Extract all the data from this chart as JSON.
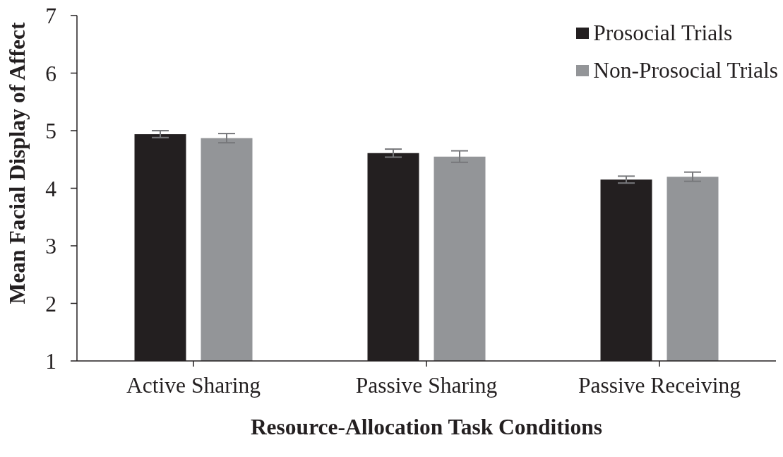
{
  "chart_data": {
    "type": "bar",
    "xlabel": "Resource-Allocation Task Conditions",
    "ylabel": "Mean Facial Display of Affect",
    "categories": [
      "Active Sharing",
      "Passive Sharing",
      "Passive Receiving"
    ],
    "series": [
      {
        "name": "Prosocial Trials",
        "color": "#231f20",
        "values": [
          4.94,
          4.61,
          4.15
        ],
        "errors": [
          0.06,
          0.07,
          0.06
        ]
      },
      {
        "name": "Non-Prosocial Trials",
        "color": "#939598",
        "values": [
          4.87,
          4.55,
          4.2
        ],
        "errors": [
          0.08,
          0.1,
          0.08
        ]
      }
    ],
    "ylim": [
      1,
      7
    ],
    "yticks": [
      1,
      2,
      3,
      4,
      5,
      6,
      7
    ],
    "legend": "top right"
  }
}
